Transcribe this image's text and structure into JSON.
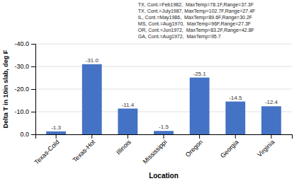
{
  "chart_data": {
    "type": "bar",
    "categories": [
      "Texas-Cold",
      "Texas-Hot",
      "Illinois",
      "Mississippi",
      "Oregon",
      "Georgia",
      "Virginia"
    ],
    "values": [
      -1.3,
      -31.0,
      -11.4,
      -1.5,
      -25.1,
      -14.5,
      -12.4
    ],
    "value_labels": [
      "-1.3",
      "-31.0",
      "-11.4",
      "-1.5",
      "-25.1",
      "-14.5",
      "-12.4"
    ],
    "data_labels": true,
    "color": "#4472C4",
    "xlabel": "Location",
    "ylabel": "Delta T in 10in slab, deg F",
    "ylim": [
      0.0,
      -40.0
    ],
    "yticks": [
      {
        "value": 0.0,
        "label": "0.0"
      },
      {
        "value": -10.0,
        "label": "-10.0"
      },
      {
        "value": -20.0,
        "label": "-20.0"
      },
      {
        "value": -30.0,
        "label": "-30.0"
      },
      {
        "value": -40.0,
        "label": "-40.0"
      }
    ],
    "grid": true,
    "annotations": [
      "TX, Cont.=Feb1982,  MaxTemp=78.1F,Range=37.3F",
      "TX, Cont.=July1987, MaxTemp=102.7F,Range=27.4F",
      "IL, Cont.=May1986,  MaxTemp=89.6F,Range=30.2F",
      "MS, Cont.=Aug1970,  MaxTemp=96F,Range=27.3F",
      "OR, Cont.=Jun1972,  MaxTemp=83.2F,Range=42.8F",
      "GA, Cont.=Aug1972,  MaxTemp=95.7"
    ]
  }
}
